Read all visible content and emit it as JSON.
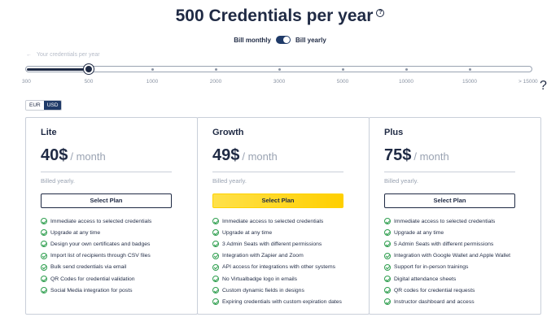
{
  "header": {
    "title": "500 Credentials per year"
  },
  "billing": {
    "monthly_label": "Bill monthly",
    "yearly_label": "Bill yearly"
  },
  "slider": {
    "label": "Your credentials per year",
    "selected_value": 500,
    "ticks": [
      "300",
      "500",
      "1000",
      "2000",
      "3000",
      "5000",
      "10000",
      "15000",
      "> 15000"
    ]
  },
  "currency": {
    "options": [
      "EUR",
      "USD"
    ],
    "selected": "USD"
  },
  "plans": [
    {
      "name": "Lite",
      "price": "40$",
      "period": "/ month",
      "billed": "Billed yearly.",
      "button": "Select Plan",
      "features": [
        "Immediate access to selected credentials",
        "Upgrade at any time",
        "Design your own certificates and badges",
        "Import list of recipients through CSV files",
        "Bulk send credentials via email",
        "QR Codes for credential validation",
        "Social Media integration for posts"
      ]
    },
    {
      "name": "Growth",
      "price": "49$",
      "period": "/ month",
      "billed": "Billed yearly.",
      "button": "Select Plan",
      "features": [
        "Immediate access to selected credentials",
        "Upgrade at any time",
        "3 Admin Seats with different permissions",
        "Integration with Zapier and Zoom",
        "API access for integrations with other systems",
        "No Virtualbadge logo in emails",
        "Custom dynamic fields in designs",
        "Expiring credentials with custom expiration dates"
      ]
    },
    {
      "name": "Plus",
      "price": "75$",
      "period": "/ month",
      "billed": "Billed yearly.",
      "button": "Select Plan",
      "features": [
        "Immediate access to selected credentials",
        "Upgrade at any time",
        "5 Admin Seats with different permissions",
        "Integration with Google Wallet and Apple Wallet",
        "Support for in-person trainings",
        "Digital attendance sheets",
        "QR codes for credential requests",
        "Instructor dashboard and access"
      ]
    }
  ],
  "colors": {
    "navy": "#1f2a44",
    "accent_yellow": "#ffd200",
    "check_green": "#2e9e4e"
  }
}
